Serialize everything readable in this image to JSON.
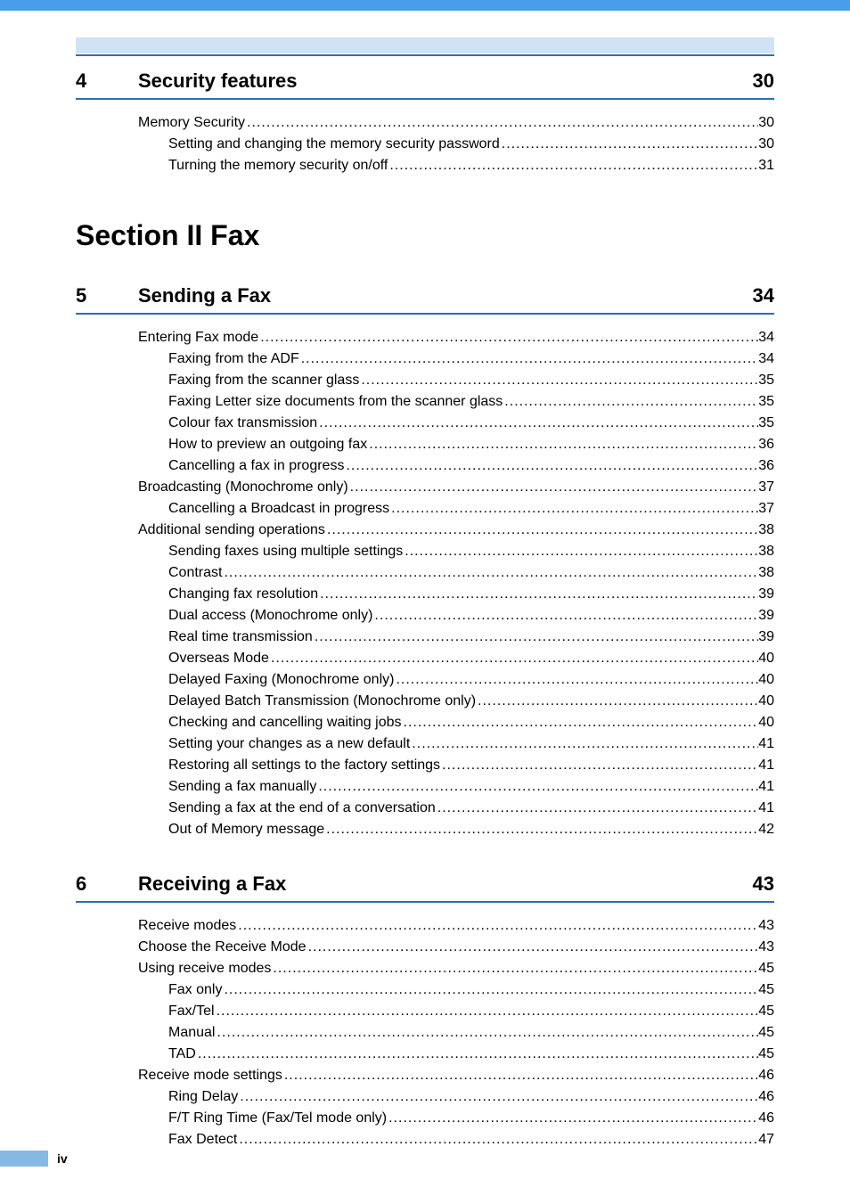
{
  "section_title": "Section II   Fax",
  "chapters": [
    {
      "num": "4",
      "title": "Security features",
      "page": "30",
      "entries": [
        {
          "level": 1,
          "label": "Memory Security",
          "page": "30"
        },
        {
          "level": 2,
          "label": "Setting and changing the memory security password ",
          "page": "30"
        },
        {
          "level": 2,
          "label": "Turning the memory security on/off ",
          "page": "31"
        }
      ]
    },
    {
      "num": "5",
      "title": "Sending a Fax",
      "page": "34",
      "entries": [
        {
          "level": 1,
          "label": "Entering Fax mode ",
          "page": "34"
        },
        {
          "level": 2,
          "label": "Faxing from the ADF  ",
          "page": "34"
        },
        {
          "level": 2,
          "label": "Faxing from the scanner glass ",
          "page": "35"
        },
        {
          "level": 2,
          "label": "Faxing Letter size documents from the scanner glass ",
          "page": "35"
        },
        {
          "level": 2,
          "label": "Colour fax transmission ",
          "page": "35"
        },
        {
          "level": 2,
          "label": "How to preview an outgoing fax ",
          "page": "36"
        },
        {
          "level": 2,
          "label": "Cancelling a fax in progress ",
          "page": "36"
        },
        {
          "level": 1,
          "label": "Broadcasting (Monochrome only)",
          "page": "37"
        },
        {
          "level": 2,
          "label": "Cancelling a Broadcast in progress",
          "page": "37"
        },
        {
          "level": 1,
          "label": "Additional sending operations",
          "page": "38"
        },
        {
          "level": 2,
          "label": "Sending faxes using multiple settings ",
          "page": "38"
        },
        {
          "level": 2,
          "label": "Contrast ",
          "page": "38"
        },
        {
          "level": 2,
          "label": "Changing fax resolution",
          "page": "39"
        },
        {
          "level": 2,
          "label": "Dual access (Monochrome only) ",
          "page": "39"
        },
        {
          "level": 2,
          "label": "Real time transmission ",
          "page": "39"
        },
        {
          "level": 2,
          "label": "Overseas Mode ",
          "page": "40"
        },
        {
          "level": 2,
          "label": "Delayed Faxing (Monochrome only)",
          "page": "40"
        },
        {
          "level": 2,
          "label": "Delayed Batch Transmission (Monochrome only)",
          "page": "40"
        },
        {
          "level": 2,
          "label": "Checking and cancelling waiting jobs",
          "page": "40"
        },
        {
          "level": 2,
          "label": "Setting your changes as a new default",
          "page": "41"
        },
        {
          "level": 2,
          "label": "Restoring all settings to the factory settings ",
          "page": "41"
        },
        {
          "level": 2,
          "label": "Sending a fax manually ",
          "page": "41"
        },
        {
          "level": 2,
          "label": "Sending a fax at the end of a conversation ",
          "page": "41"
        },
        {
          "level": 2,
          "label": "Out of Memory message ",
          "page": "42"
        }
      ]
    },
    {
      "num": "6",
      "title": "Receiving a Fax",
      "page": "43",
      "entries": [
        {
          "level": 1,
          "label": "Receive modes ",
          "page": "43"
        },
        {
          "level": 1,
          "label": "Choose the Receive Mode ",
          "page": "43"
        },
        {
          "level": 1,
          "label": "Using receive modes ",
          "page": "45"
        },
        {
          "level": 2,
          "label": "Fax only ",
          "page": "45"
        },
        {
          "level": 2,
          "label": "Fax/Tel",
          "page": "45"
        },
        {
          "level": 2,
          "label": "Manual",
          "page": "45"
        },
        {
          "level": 2,
          "label": "TAD ",
          "page": "45"
        },
        {
          "level": 1,
          "label": "Receive mode settings ",
          "page": "46"
        },
        {
          "level": 2,
          "label": "Ring Delay ",
          "page": "46"
        },
        {
          "level": 2,
          "label": "F/T Ring Time (Fax/Tel mode only)",
          "page": "46"
        },
        {
          "level": 2,
          "label": "Fax Detect ",
          "page": "47"
        }
      ]
    }
  ],
  "footer_page": "iv",
  "colors": {
    "top_stripe": "#4a9de8",
    "header_fill": "#cfe3f5",
    "rule": "#2f6eb0",
    "footer_bar": "#87b8e2"
  }
}
